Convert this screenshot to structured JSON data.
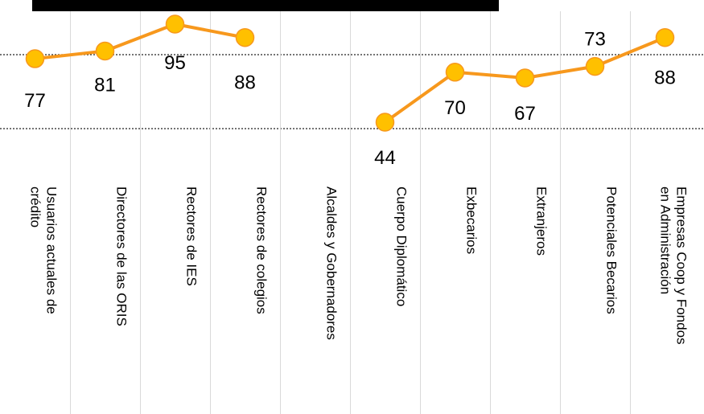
{
  "chart_data": {
    "type": "line",
    "title": "",
    "xlabel": "",
    "ylabel": "",
    "categories": [
      [
        "Usuarios actuales de",
        "crédito"
      ],
      [
        "Directores de las ORIS"
      ],
      [
        "Rectores de IES"
      ],
      [
        "Rectores de colegios"
      ],
      [
        "Alcaldes y Gobernadores"
      ],
      [
        "Cuerpo Diplomático"
      ],
      [
        "Exbecarios"
      ],
      [
        "Extranjeros"
      ],
      [
        "Potenciales Becarios"
      ],
      [
        "Empresas Coop y Fondos",
        "en Administración"
      ]
    ],
    "series": [
      {
        "values": [
          77,
          81,
          95,
          88,
          null,
          44,
          70,
          67,
          73,
          88
        ],
        "color": "#F7981D",
        "marker_color": "#FFC000"
      }
    ],
    "data_labels": [
      "77",
      "81",
      "95",
      "88",
      "",
      "44",
      "70",
      "67",
      "73",
      "88"
    ],
    "ylim": [
      35,
      105
    ],
    "grid": "dotted-horizontal"
  }
}
